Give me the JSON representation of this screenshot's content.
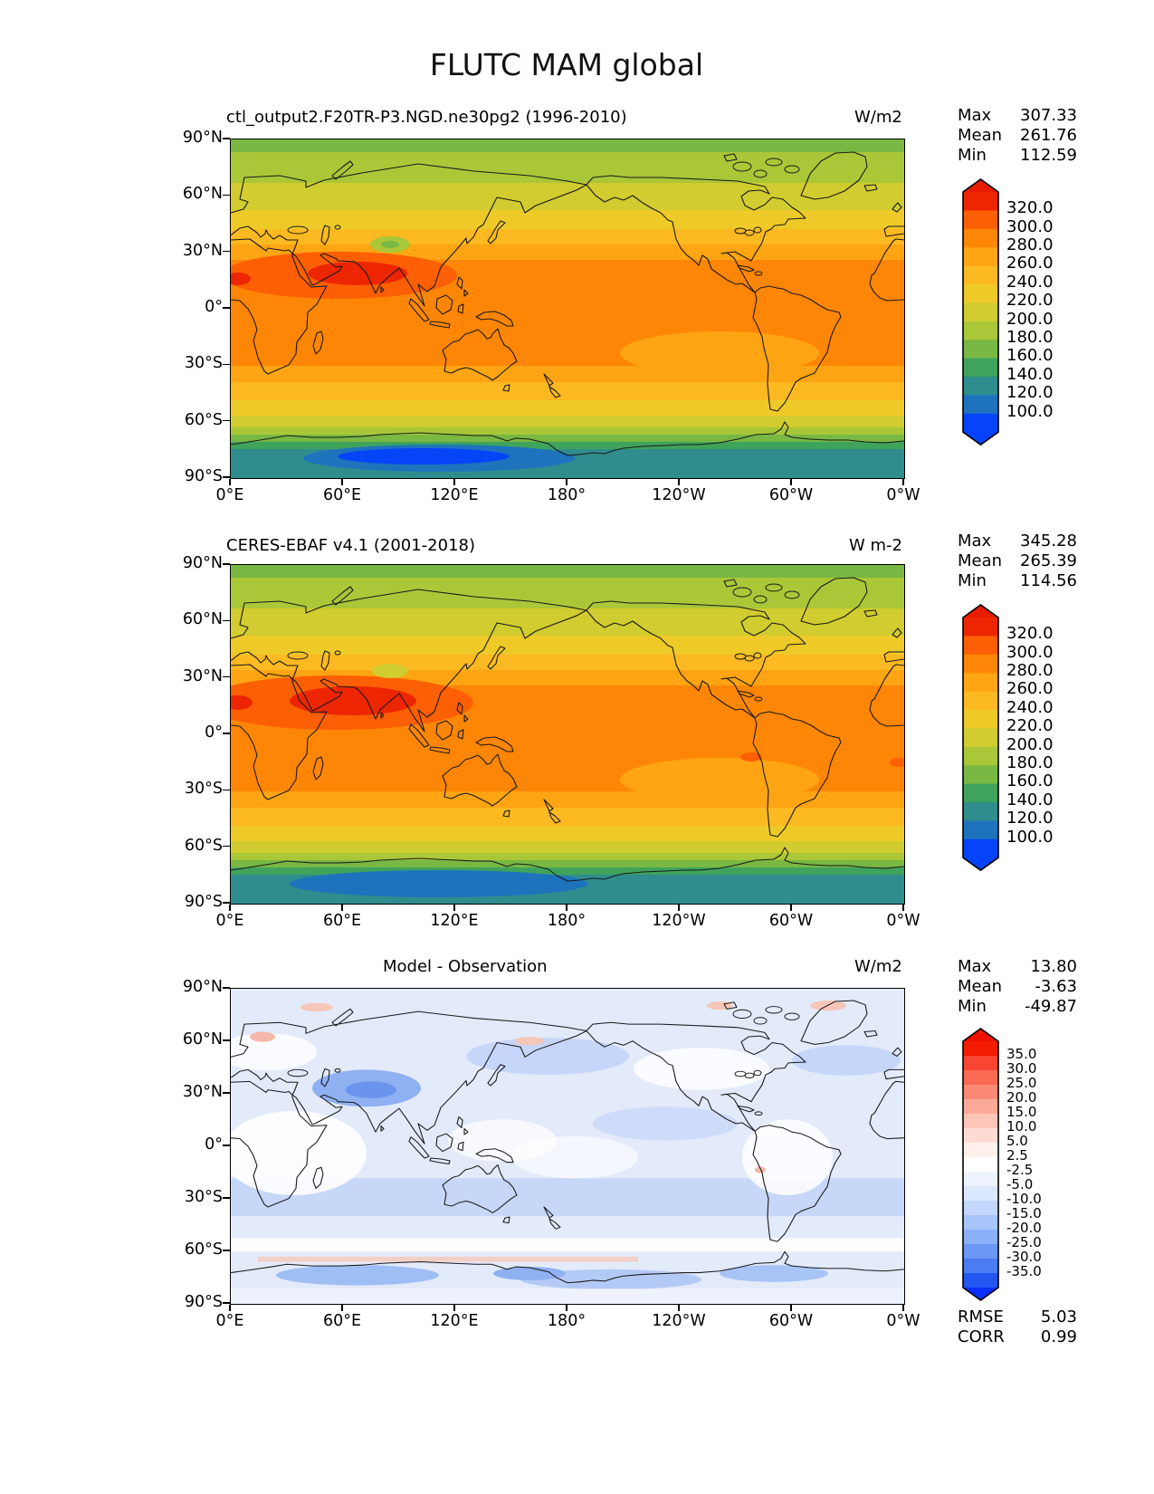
{
  "figure": {
    "title": "FLUTC MAM global"
  },
  "axes": {
    "lat_ticks": [
      "90°N",
      "60°N",
      "30°N",
      "0°",
      "30°S",
      "60°S",
      "90°S"
    ],
    "lon_ticks": [
      "0°E",
      "60°E",
      "120°E",
      "180°",
      "120°W",
      "60°W",
      "0°W"
    ]
  },
  "panels": [
    {
      "id": "model",
      "title": "ctl_output2.F20TR-P3.NGD.ne30pg2 (1996-2010)",
      "units": "W/m2",
      "stats": [
        {
          "label": "Max",
          "value": "307.33"
        },
        {
          "label": "Mean",
          "value": "261.76"
        },
        {
          "label": "Min",
          "value": "112.59"
        }
      ],
      "colorbar": {
        "ticks": [
          "320.0",
          "300.0",
          "280.0",
          "260.0",
          "240.0",
          "220.0",
          "200.0",
          "180.0",
          "160.0",
          "140.0",
          "120.0",
          "100.0"
        ],
        "colors": [
          "#ed2601",
          "#fd5f04",
          "#fe8606",
          "#ffa413",
          "#fcb921",
          "#eeca29",
          "#d1cc2f",
          "#aac738",
          "#78b843",
          "#3fa35c",
          "#2f8d8d",
          "#1d74bd",
          "#0545f7"
        ],
        "arrow_top": "#ea1c00",
        "arrow_bottom": "#0443fe"
      }
    },
    {
      "id": "observation",
      "title": "CERES-EBAF v4.1 (2001-2018)",
      "units": "W m-2",
      "stats": [
        {
          "label": "Max",
          "value": "345.28"
        },
        {
          "label": "Mean",
          "value": "265.39"
        },
        {
          "label": "Min",
          "value": "114.56"
        }
      ],
      "colorbar": {
        "ticks": [
          "320.0",
          "300.0",
          "280.0",
          "260.0",
          "240.0",
          "220.0",
          "200.0",
          "180.0",
          "160.0",
          "140.0",
          "120.0",
          "100.0"
        ],
        "colors": [
          "#ed2601",
          "#fd5f04",
          "#fe8606",
          "#ffa413",
          "#fcb921",
          "#eeca29",
          "#d1cc2f",
          "#aac738",
          "#78b843",
          "#3fa35c",
          "#2f8d8d",
          "#1d74bd",
          "#0545f7"
        ],
        "arrow_top": "#ea1c00",
        "arrow_bottom": "#0443fe"
      }
    },
    {
      "id": "difference",
      "title": "Model - Observation",
      "units": "W/m2",
      "stats": [
        {
          "label": "Max",
          "value": "13.80"
        },
        {
          "label": "Mean",
          "value": "-3.63"
        },
        {
          "label": "Min",
          "value": "-49.87"
        }
      ],
      "extra_stats": [
        {
          "label": "RMSE",
          "value": "5.03"
        },
        {
          "label": "CORR",
          "value": "0.99"
        }
      ],
      "colorbar": {
        "ticks": [
          "35.0",
          "30.0",
          "25.0",
          "20.0",
          "15.0",
          "10.0",
          "5.0",
          "2.5",
          "-2.5",
          "-5.0",
          "-10.0",
          "-15.0",
          "-20.0",
          "-25.0",
          "-30.0",
          "-35.0"
        ],
        "colors": [
          "#f31b00",
          "#f84531",
          "#fa6a55",
          "#fb8a75",
          "#fcaa97",
          "#fdc5b8",
          "#fedcd4",
          "#fff0ec",
          "#ffffff",
          "#eef3fe",
          "#dbe8fd",
          "#c3d7fc",
          "#a7c5fa",
          "#8ab0f8",
          "#6b97f5",
          "#4c7cf2",
          "#2356ee"
        ],
        "arrow_top": "#f01000",
        "arrow_bottom": "#0a2fff"
      }
    }
  ],
  "chart_data": [
    {
      "type": "heatmap",
      "title": "ctl_output2.F20TR-P3.NGD.ne30pg2 (1996-2010)",
      "subtitle_units": "W/m2",
      "projection": "global lat-lon, Pacific-centered",
      "stats": {
        "max": 307.33,
        "mean": 261.76,
        "min": 112.59
      },
      "colorbar_levels": [
        320.0,
        300.0,
        280.0,
        260.0,
        240.0,
        220.0,
        200.0,
        180.0,
        160.0,
        140.0,
        120.0,
        100.0
      ],
      "x_ticks": [
        "0°E",
        "60°E",
        "120°E",
        "180°",
        "120°W",
        "60°W",
        "0°W"
      ],
      "y_ticks": [
        "90°N",
        "60°N",
        "30°N",
        "0°",
        "30°S",
        "60°S",
        "90°S"
      ],
      "x_range_deg": [
        0,
        360
      ],
      "y_range_deg": [
        90,
        -90
      ],
      "legend_position": "right",
      "grid": false
    },
    {
      "type": "heatmap",
      "title": "CERES-EBAF v4.1 (2001-2018)",
      "subtitle_units": "W m-2",
      "projection": "global lat-lon, Pacific-centered",
      "stats": {
        "max": 345.28,
        "mean": 265.39,
        "min": 114.56
      },
      "colorbar_levels": [
        320.0,
        300.0,
        280.0,
        260.0,
        240.0,
        220.0,
        200.0,
        180.0,
        160.0,
        140.0,
        120.0,
        100.0
      ],
      "x_ticks": [
        "0°E",
        "60°E",
        "120°E",
        "180°",
        "120°W",
        "60°W",
        "0°W"
      ],
      "y_ticks": [
        "90°N",
        "60°N",
        "30°N",
        "0°",
        "30°S",
        "60°S",
        "90°S"
      ],
      "x_range_deg": [
        0,
        360
      ],
      "y_range_deg": [
        90,
        -90
      ],
      "legend_position": "right",
      "grid": false
    },
    {
      "type": "heatmap",
      "title": "Model - Observation",
      "subtitle_units": "W/m2",
      "projection": "global lat-lon, Pacific-centered",
      "stats": {
        "max": 13.8,
        "mean": -3.63,
        "min": -49.87,
        "rmse": 5.03,
        "corr": 0.99
      },
      "colorbar_levels": [
        35.0,
        30.0,
        25.0,
        20.0,
        15.0,
        10.0,
        5.0,
        2.5,
        -2.5,
        -5.0,
        -10.0,
        -15.0,
        -20.0,
        -25.0,
        -30.0,
        -35.0
      ],
      "x_ticks": [
        "0°E",
        "60°E",
        "120°E",
        "180°",
        "120°W",
        "60°W",
        "0°W"
      ],
      "y_ticks": [
        "90°N",
        "60°N",
        "30°N",
        "0°",
        "30°S",
        "60°S",
        "90°S"
      ],
      "x_range_deg": [
        0,
        360
      ],
      "y_range_deg": [
        90,
        -90
      ],
      "legend_position": "right",
      "grid": false
    }
  ]
}
